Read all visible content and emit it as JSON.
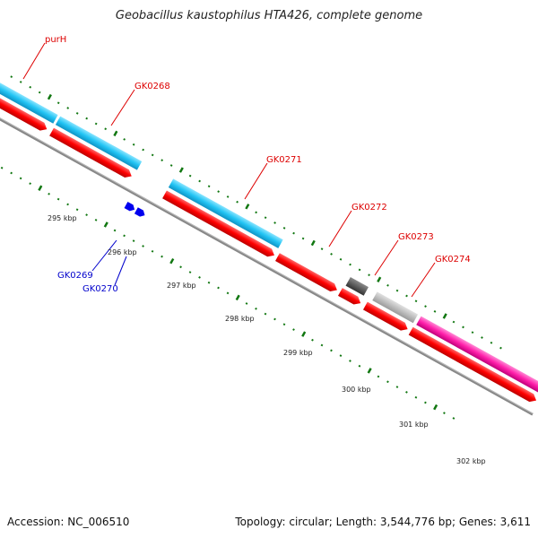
{
  "title": "Geobacillus kaustophilus HTA426, complete genome",
  "footer": {
    "accession": "Accession: NC_006510",
    "stats": "Topology: circular; Length: 3,544,776 bp; Genes: 3,611"
  },
  "colors": {
    "cds": "#ff0000",
    "cyan_feature": "#33ccff",
    "magenta_feature": "#ff2ab0",
    "dark_feature": "#555555",
    "light_feature": "#bbbbbb",
    "blue_feature": "#0000ee",
    "backbone": "#888888",
    "ticks": "#117711",
    "label_red": "#dd0000",
    "label_blue": "#0000cc"
  },
  "gene_labels": [
    {
      "name": "purH",
      "color": "red"
    },
    {
      "name": "GK0268",
      "color": "red"
    },
    {
      "name": "GK0271",
      "color": "red"
    },
    {
      "name": "GK0272",
      "color": "red"
    },
    {
      "name": "GK0273",
      "color": "red"
    },
    {
      "name": "GK0274",
      "color": "red"
    },
    {
      "name": "GK0269",
      "color": "blue"
    },
    {
      "name": "GK0270",
      "color": "blue"
    }
  ],
  "kbp_labels": [
    "295 kbp",
    "296 kbp",
    "297 kbp",
    "298 kbp",
    "299 kbp",
    "300 kbp",
    "301 kbp",
    "302 kbp"
  ]
}
